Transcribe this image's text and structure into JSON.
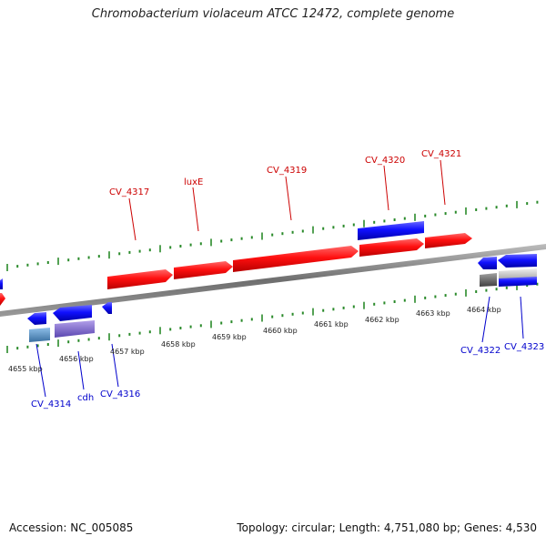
{
  "title": "Chromobacterium violaceum ATCC 12472, complete genome",
  "accession": "Accession: NC_005085",
  "topology": "Topology: circular; Length: 4,751,080 bp; Genes: 4,530",
  "colors": {
    "forward": "#ff0000",
    "reverse": "#0000ff",
    "backbone": "#888888",
    "tick": "#2a8a2a",
    "label_forward": "#cc0000",
    "label_reverse": "#0000cc"
  },
  "ticks": [
    "4655 kbp",
    "4656 kbp",
    "4657 kbp",
    "4658 kbp",
    "4659 kbp",
    "4660 kbp",
    "4661 kbp",
    "4662 kbp",
    "4663 kbp",
    "4664 kbp"
  ],
  "genes_forward": [
    "CV_4317",
    "luxE",
    "CV_4319",
    "CV_4320",
    "CV_4321"
  ],
  "genes_reverse": [
    "CV_4314",
    "cdh",
    "CV_4316",
    "CV_4322",
    "CV_4323"
  ]
}
